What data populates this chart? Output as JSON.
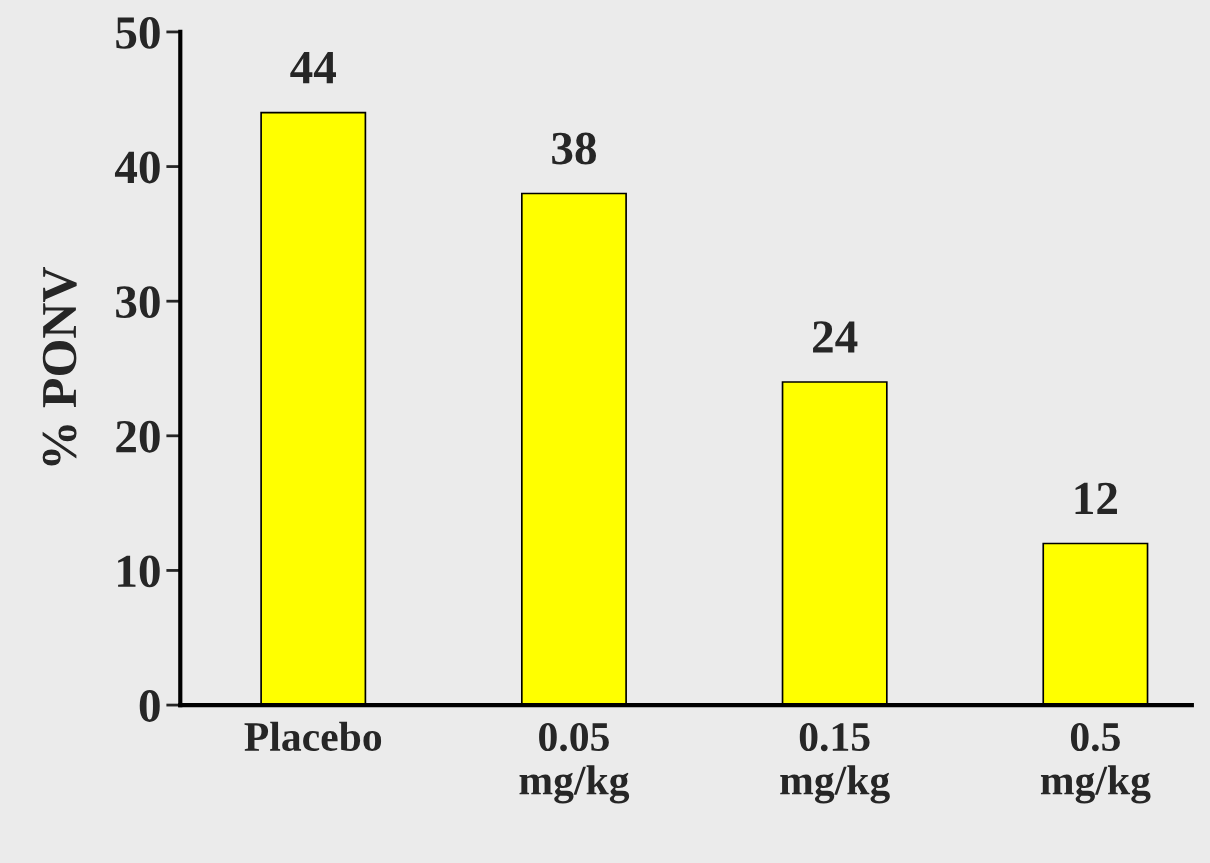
{
  "chart_data": {
    "type": "bar",
    "ylabel": "% PONV",
    "categories": [
      "Placebo",
      "0.05\nmg/kg",
      "0.15\nmg/kg",
      "0.5\nmg/kg"
    ],
    "values": [
      44,
      38,
      24,
      12
    ],
    "color": "#ffff00",
    "ylim": [
      0,
      50
    ],
    "yticks": [
      0,
      10,
      20,
      30,
      40,
      50
    ],
    "data_labels": true,
    "grid": false,
    "legend": false
  }
}
